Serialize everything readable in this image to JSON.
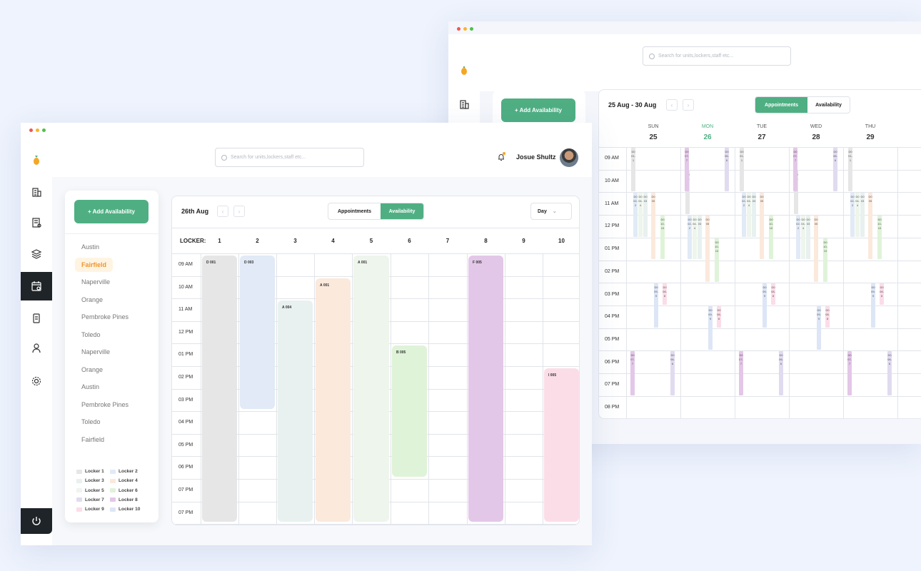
{
  "app": {
    "colors": {
      "accent": "#4faf83",
      "selected_text": "#f0952c"
    }
  },
  "search": {
    "placeholder": "Search for units,lockers,staff etc..."
  },
  "user": {
    "name": "Josue Shultz"
  },
  "sidebar": {
    "icons": [
      "logo-icon",
      "building-icon",
      "document-icon",
      "layers-icon",
      "calendar-icon",
      "phone-icon",
      "user-icon",
      "gear-icon",
      "power-icon"
    ]
  },
  "add_button": "+ Add Availability",
  "locations": [
    "Austin",
    "Fairfield",
    "Naperville",
    "Orange",
    "Pembroke Pines",
    "Toledo",
    "Naperville",
    "Orange",
    "Austin",
    "Pembroke Pines",
    "Toledo",
    "Fairfield"
  ],
  "selected_location_index": 1,
  "legend": [
    {
      "label": "Locker 1",
      "color": "#e6e6e6"
    },
    {
      "label": "Locker 2",
      "color": "#e1eaf6"
    },
    {
      "label": "Locker 3",
      "color": "#e8f1ef"
    },
    {
      "label": "Locker 4",
      "color": "#fbe9dc"
    },
    {
      "label": "Locker 5",
      "color": "#eef5ec"
    },
    {
      "label": "Locker 6",
      "color": "#dff3d8"
    },
    {
      "label": "Locker 7",
      "color": "#e1dbf0"
    },
    {
      "label": "Locker 8",
      "color": "#e3c7e8"
    },
    {
      "label": "Locker 9",
      "color": "#fbdde8"
    },
    {
      "label": "Locker 10",
      "color": "#dde6f6"
    }
  ],
  "front_calendar": {
    "date_label": "26th Aug",
    "tabs": [
      "Appointments",
      "Availability"
    ],
    "active_tab": "Availability",
    "view_select": "Day",
    "locker_header": "LOCKER:",
    "lockers": [
      "1",
      "2",
      "3",
      "4",
      "5",
      "6",
      "7",
      "8",
      "9",
      "10"
    ],
    "times": [
      "09 AM",
      "10 AM",
      "11 AM",
      "12 PM",
      "01 PM",
      "02 PM",
      "03 PM",
      "04 PM",
      "05 PM",
      "06 PM",
      "07 PM",
      "07 PM"
    ],
    "blocks": [
      {
        "label": "D 001",
        "locker": 1,
        "start": 0,
        "end": 12,
        "color": "#e6e6e6"
      },
      {
        "label": "D 003",
        "locker": 2,
        "start": 0,
        "end": 7,
        "color": "#e1eaf6"
      },
      {
        "label": "A 004",
        "locker": 3,
        "start": 2,
        "end": 12,
        "color": "#e8f1ef"
      },
      {
        "label": "A 001",
        "locker": 4,
        "start": 1,
        "end": 12,
        "color": "#fbe9dc"
      },
      {
        "label": "A 001",
        "locker": 5,
        "start": 0,
        "end": 12,
        "color": "#eef5ec"
      },
      {
        "label": "B 005",
        "locker": 6,
        "start": 4,
        "end": 10,
        "color": "#dff3d8"
      },
      {
        "label": "F 005",
        "locker": 8,
        "start": 0,
        "end": 12,
        "color": "#e3c7e8"
      },
      {
        "label": "I 005",
        "locker": 10,
        "start": 5,
        "end": 12,
        "color": "#fbdde8"
      }
    ]
  },
  "back_calendar": {
    "date_label": "25 Aug - 30 Aug",
    "tabs": [
      "Appointments",
      "Availability"
    ],
    "active_tab": "Appointments",
    "days": [
      {
        "name": "SUN",
        "date": "25"
      },
      {
        "name": "MON",
        "date": "26",
        "today": true
      },
      {
        "name": "TUE",
        "date": "27"
      },
      {
        "name": "WED",
        "date": "28"
      },
      {
        "name": "THU",
        "date": "29"
      }
    ],
    "times": [
      "09 AM",
      "10 AM",
      "11 AM",
      "12 PM",
      "01 PM",
      "02 PM",
      "03 PM",
      "04 PM",
      "05 PM",
      "06 PM",
      "07 PM",
      "08 PM"
    ],
    "bar_labels": [
      "D001-1",
      "D002-2",
      "D003",
      "D005",
      "D004-4",
      "D010-10",
      "D006-6",
      "D007-7",
      "D008-8",
      "D009-9"
    ]
  }
}
